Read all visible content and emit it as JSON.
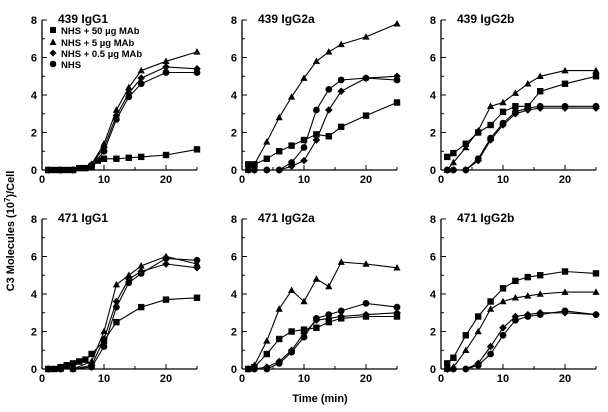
{
  "figure": {
    "ylabel": "C3 Molecules (10",
    "ylabel_sup": "7",
    "ylabel_tail": ")/Cell",
    "xlabel": "Time (min)"
  },
  "legend": [
    {
      "label": "NHS + 50 µg MAb",
      "marker": "square"
    },
    {
      "label": "NHS + 5 µg MAb",
      "marker": "triangle"
    },
    {
      "label": "NHS + 0.5 µg MAb",
      "marker": "diamond"
    },
    {
      "label": "NHS",
      "marker": "circle"
    }
  ],
  "chart_data": [
    {
      "type": "line",
      "title": "439 IgG1",
      "xlim": [
        0,
        25
      ],
      "ylim": [
        0,
        8
      ],
      "xticks": [
        0,
        10,
        20
      ],
      "yticks": [
        0,
        2,
        4,
        6,
        8
      ],
      "series": [
        {
          "name": "NHS + 50 µg MAb",
          "marker": "square",
          "x": [
            1,
            2,
            3,
            4,
            5,
            6,
            7,
            8,
            9,
            10,
            12,
            14,
            16,
            20,
            25
          ],
          "y": [
            0,
            0,
            0,
            0,
            0,
            0.1,
            0.1,
            0.2,
            0.5,
            0.6,
            0.6,
            0.65,
            0.7,
            0.8,
            1.1
          ]
        },
        {
          "name": "NHS + 5 µg MAb",
          "marker": "triangle",
          "x": [
            1,
            3,
            5,
            8,
            10,
            12,
            14,
            16,
            20,
            25
          ],
          "y": [
            0,
            0,
            0,
            0.3,
            1.4,
            3.2,
            4.4,
            5.3,
            5.8,
            6.3
          ]
        },
        {
          "name": "NHS + 0.5 µg MAb",
          "marker": "diamond",
          "x": [
            1,
            3,
            5,
            8,
            10,
            12,
            14,
            16,
            20,
            25
          ],
          "y": [
            0,
            0,
            0,
            0.3,
            1.2,
            2.9,
            4.1,
            4.9,
            5.5,
            5.4
          ]
        },
        {
          "name": "NHS",
          "marker": "circle",
          "x": [
            1,
            3,
            5,
            8,
            10,
            12,
            14,
            16,
            20,
            25
          ],
          "y": [
            0,
            0,
            0,
            0.2,
            1.0,
            2.7,
            3.9,
            4.6,
            5.2,
            5.2
          ]
        }
      ]
    },
    {
      "type": "line",
      "title": "439 IgG2a",
      "xlim": [
        0,
        25
      ],
      "ylim": [
        0,
        8
      ],
      "xticks": [
        0,
        10,
        20
      ],
      "yticks": [
        0,
        2,
        4,
        6,
        8
      ],
      "series": [
        {
          "name": "NHS + 50 µg MAb",
          "marker": "square",
          "x": [
            1,
            2,
            4,
            6,
            8,
            10,
            12,
            14,
            16,
            20,
            25
          ],
          "y": [
            0.3,
            0.3,
            0.6,
            1.0,
            1.3,
            1.6,
            1.9,
            1.8,
            2.3,
            2.9,
            3.6
          ]
        },
        {
          "name": "NHS + 5 µg MAb",
          "marker": "triangle",
          "x": [
            1,
            2,
            4,
            6,
            8,
            10,
            12,
            14,
            16,
            20,
            25
          ],
          "y": [
            0,
            0.3,
            1.5,
            2.8,
            3.9,
            4.9,
            5.8,
            6.3,
            6.7,
            7.1,
            7.8
          ]
        },
        {
          "name": "NHS + 0.5 µg MAb",
          "marker": "diamond",
          "x": [
            1,
            2,
            4,
            6,
            8,
            10,
            12,
            14,
            16,
            20,
            25
          ],
          "y": [
            0,
            0,
            0,
            0,
            0.2,
            0.5,
            1.6,
            3.2,
            4.2,
            4.9,
            5.0
          ]
        },
        {
          "name": "NHS",
          "marker": "circle",
          "x": [
            1,
            2,
            4,
            6,
            8,
            10,
            12,
            14,
            16,
            20,
            25
          ],
          "y": [
            0,
            0,
            0,
            0,
            0.4,
            1.2,
            3.2,
            4.3,
            4.8,
            4.9,
            4.8
          ]
        }
      ]
    },
    {
      "type": "line",
      "title": "439 IgG2b",
      "xlim": [
        0,
        25
      ],
      "ylim": [
        0,
        8
      ],
      "xticks": [
        0,
        10,
        20
      ],
      "yticks": [
        0,
        2,
        4,
        6,
        8
      ],
      "series": [
        {
          "name": "NHS + 50 µg MAb",
          "marker": "square",
          "x": [
            1,
            2,
            4,
            6,
            8,
            10,
            12,
            14,
            16,
            20,
            25
          ],
          "y": [
            0.7,
            0.9,
            1.4,
            2.0,
            2.4,
            3.1,
            3.4,
            3.4,
            4.2,
            4.6,
            5.0
          ]
        },
        {
          "name": "NHS + 5 µg MAb",
          "marker": "triangle",
          "x": [
            1,
            2,
            4,
            6,
            8,
            10,
            12,
            14,
            16,
            20,
            25
          ],
          "y": [
            0,
            0.4,
            1.2,
            2.1,
            3.4,
            3.6,
            4.1,
            4.6,
            5.0,
            5.3,
            5.3
          ]
        },
        {
          "name": "NHS + 0.5 µg MAb",
          "marker": "diamond",
          "x": [
            1,
            2,
            4,
            6,
            8,
            10,
            12,
            14,
            16,
            20,
            25
          ],
          "y": [
            0,
            0,
            0,
            0.5,
            1.6,
            2.4,
            3.0,
            3.2,
            3.3,
            3.3,
            3.3
          ]
        },
        {
          "name": "NHS",
          "marker": "circle",
          "x": [
            1,
            2,
            4,
            6,
            8,
            10,
            12,
            14,
            16,
            20,
            25
          ],
          "y": [
            0,
            0,
            0,
            0.6,
            1.7,
            2.5,
            3.1,
            3.3,
            3.4,
            3.4,
            3.4
          ]
        }
      ]
    },
    {
      "type": "line",
      "title": "471 IgG1",
      "xlim": [
        0,
        25
      ],
      "ylim": [
        0,
        8
      ],
      "xticks": [
        0,
        10,
        20
      ],
      "yticks": [
        0,
        2,
        4,
        6,
        8
      ],
      "series": [
        {
          "name": "NHS + 50 µg MAb",
          "marker": "square",
          "x": [
            1,
            2,
            3,
            4,
            5,
            6,
            7,
            8,
            10,
            12,
            16,
            20,
            25
          ],
          "y": [
            0,
            0,
            0.1,
            0.2,
            0.3,
            0.4,
            0.5,
            0.8,
            1.5,
            2.5,
            3.3,
            3.7,
            3.8
          ]
        },
        {
          "name": "NHS + 5 µg MAb",
          "marker": "triangle",
          "x": [
            1,
            3,
            5,
            8,
            10,
            12,
            14,
            16,
            20,
            25
          ],
          "y": [
            0,
            0,
            0,
            0.4,
            2.0,
            4.5,
            5.0,
            5.5,
            6.0,
            5.6
          ]
        },
        {
          "name": "NHS + 0.5 µg MAb",
          "marker": "diamond",
          "x": [
            1,
            3,
            5,
            8,
            10,
            12,
            14,
            16,
            20,
            25
          ],
          "y": [
            0,
            0,
            0,
            0.2,
            1.6,
            3.6,
            4.8,
            5.2,
            5.6,
            5.4
          ]
        },
        {
          "name": "NHS",
          "marker": "circle",
          "x": [
            1,
            3,
            5,
            8,
            10,
            12,
            14,
            16,
            20,
            25
          ],
          "y": [
            0,
            0,
            0,
            0.1,
            1.2,
            3.3,
            4.6,
            5.1,
            5.9,
            5.8
          ]
        }
      ]
    },
    {
      "type": "line",
      "title": "471 IgG2a",
      "xlim": [
        0,
        25
      ],
      "ylim": [
        0,
        8
      ],
      "xticks": [
        0,
        10,
        20
      ],
      "yticks": [
        0,
        2,
        4,
        6,
        8
      ],
      "series": [
        {
          "name": "NHS + 50 µg MAb",
          "marker": "square",
          "x": [
            1,
            2,
            4,
            6,
            8,
            10,
            12,
            14,
            16,
            20,
            25
          ],
          "y": [
            0,
            0.1,
            0.8,
            1.6,
            2.0,
            2.1,
            2.2,
            2.5,
            2.7,
            2.8,
            2.8
          ]
        },
        {
          "name": "NHS + 5 µg MAb",
          "marker": "triangle",
          "x": [
            1,
            2,
            4,
            6,
            8,
            10,
            12,
            14,
            16,
            20,
            25
          ],
          "y": [
            0,
            0.2,
            1.5,
            3.2,
            4.2,
            3.6,
            4.8,
            4.4,
            5.7,
            5.6,
            5.4
          ]
        },
        {
          "name": "NHS + 0.5 µg MAb",
          "marker": "diamond",
          "x": [
            1,
            2,
            4,
            6,
            8,
            10,
            12,
            14,
            16,
            20,
            25
          ],
          "y": [
            0,
            0,
            0.1,
            0.4,
            1.0,
            1.9,
            2.6,
            2.7,
            2.8,
            2.9,
            3.0
          ]
        },
        {
          "name": "NHS",
          "marker": "circle",
          "x": [
            1,
            2,
            4,
            6,
            8,
            10,
            12,
            14,
            16,
            20,
            25
          ],
          "y": [
            0,
            0,
            0,
            0.3,
            0.9,
            1.7,
            2.7,
            2.9,
            3.1,
            3.5,
            3.3
          ]
        }
      ]
    },
    {
      "type": "line",
      "title": "471 IgG2b",
      "xlim": [
        0,
        25
      ],
      "ylim": [
        0,
        8
      ],
      "xticks": [
        0,
        10,
        20
      ],
      "yticks": [
        0,
        2,
        4,
        6,
        8
      ],
      "series": [
        {
          "name": "NHS + 50 µg MAb",
          "marker": "square",
          "x": [
            1,
            2,
            4,
            6,
            8,
            10,
            12,
            14,
            16,
            20,
            25
          ],
          "y": [
            0.3,
            0.6,
            1.8,
            2.8,
            3.6,
            4.3,
            4.7,
            4.9,
            5.0,
            5.2,
            5.1
          ]
        },
        {
          "name": "NHS + 5 µg MAb",
          "marker": "triangle",
          "x": [
            1,
            2,
            4,
            6,
            8,
            10,
            12,
            14,
            16,
            20,
            25
          ],
          "y": [
            0,
            0.1,
            1.0,
            2.0,
            3.2,
            3.6,
            3.8,
            3.9,
            4.0,
            4.1,
            4.1
          ]
        },
        {
          "name": "NHS + 0.5 µg MAb",
          "marker": "diamond",
          "x": [
            1,
            2,
            4,
            6,
            8,
            10,
            12,
            14,
            16,
            20,
            25
          ],
          "y": [
            0,
            0,
            0,
            0.3,
            1.2,
            2.2,
            2.8,
            2.9,
            3.0,
            3.0,
            2.9
          ]
        },
        {
          "name": "NHS",
          "marker": "circle",
          "x": [
            1,
            2,
            4,
            6,
            8,
            10,
            12,
            14,
            16,
            20,
            25
          ],
          "y": [
            0,
            0,
            0,
            0.2,
            0.8,
            1.8,
            2.6,
            2.8,
            2.9,
            3.1,
            2.9
          ]
        }
      ]
    }
  ]
}
